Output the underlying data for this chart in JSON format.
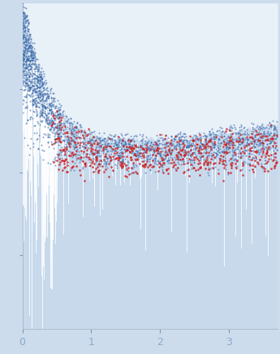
{
  "xlim": [
    0.0,
    3.7
  ],
  "ylim": [
    -0.95,
    1.02
  ],
  "xticks": [
    0,
    1,
    2,
    3
  ],
  "background_color": "#cddcec",
  "fill_color": "#c8d9ec",
  "blue_dot_color": "#3a6aaa",
  "red_dot_color": "#cc2222",
  "spike_color": "#ffffff",
  "figsize": [
    3.45,
    4.37
  ],
  "dpi": 100
}
